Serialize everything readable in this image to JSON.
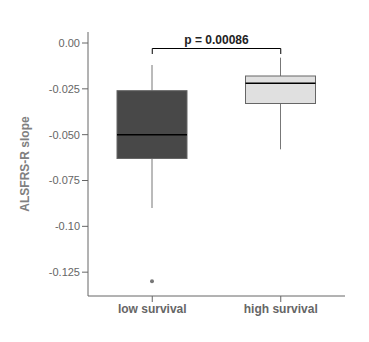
{
  "chart_data": {
    "type": "box",
    "categories": [
      "low survival",
      "high survival"
    ],
    "boxes": [
      {
        "q1": -0.063,
        "median": -0.05,
        "q3": -0.026,
        "whisker_low": -0.09,
        "whisker_high": -0.012,
        "outliers": [
          -0.13
        ]
      },
      {
        "q1": -0.033,
        "median": -0.022,
        "q3": -0.018,
        "whisker_low": -0.058,
        "whisker_high": -0.008,
        "outliers": []
      }
    ],
    "colors": [
      "#484848",
      "#e0e0e0"
    ],
    "ylabel": "ALSFRS-R slope",
    "ylim": [
      -0.138,
      0.006
    ],
    "yticks": [
      {
        "value": 0,
        "label": "0.00"
      },
      -0.025,
      {
        "value": -0.05,
        "label": "-0.050"
      },
      -0.075,
      {
        "value": -0.1,
        "label": "-0.10"
      },
      -0.125
    ],
    "grid": false,
    "annotations": [
      {
        "text": "p = 0.00086",
        "from": "low survival",
        "to": "high survival",
        "y": -0.003,
        "drop": 0.003
      }
    ]
  }
}
